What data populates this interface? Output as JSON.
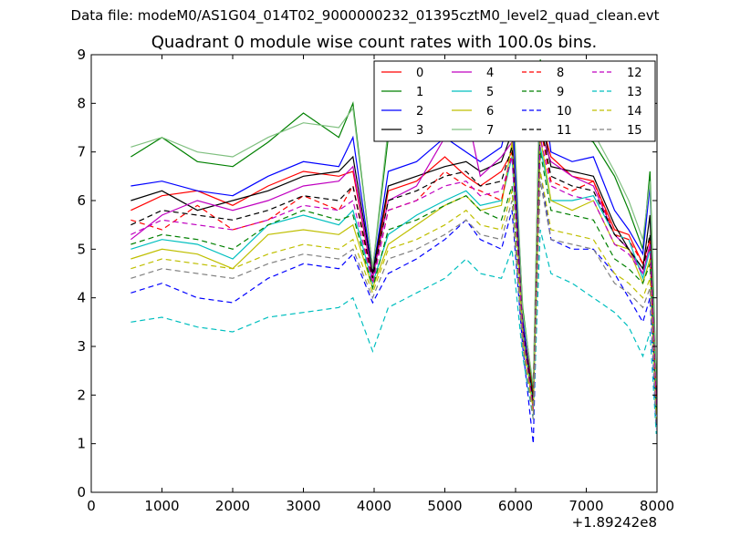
{
  "suptitle": "Data file: modeM0/AS1G04_014T02_9000000232_01395cztM0_level2_quad_clean.evt",
  "chart_data": {
    "type": "line",
    "title": "Quadrant 0 module wise count rates with 100.0s bins.",
    "xlabel": "",
    "ylabel": "",
    "x_offset_label": "+1.89242e8",
    "xlim": [
      0,
      8000
    ],
    "ylim": [
      0,
      9
    ],
    "xticks": [
      0,
      1000,
      2000,
      3000,
      4000,
      5000,
      6000,
      7000,
      8000
    ],
    "yticks": [
      0,
      1,
      2,
      3,
      4,
      5,
      6,
      7,
      8,
      9
    ],
    "legend_position": "top-right",
    "legend_columns": 4,
    "x": [
      560,
      1000,
      1500,
      2000,
      2500,
      3000,
      3500,
      3700,
      3980,
      4200,
      4600,
      5000,
      5300,
      5500,
      5800,
      5950,
      6100,
      6250,
      6350,
      6500,
      6800,
      7100,
      7400,
      7600,
      7800,
      7900,
      7990
    ],
    "series": [
      {
        "name": "0",
        "color": "#ff0000",
        "dash": "solid",
        "values": [
          5.8,
          6.1,
          6.2,
          5.9,
          6.3,
          6.6,
          6.5,
          6.6,
          4.4,
          6.2,
          6.4,
          6.9,
          6.5,
          6.3,
          6.6,
          7.0,
          3.5,
          2.0,
          7.7,
          6.9,
          6.5,
          6.4,
          5.4,
          5.3,
          4.7,
          5.2,
          2.1
        ]
      },
      {
        "name": "1",
        "color": "#008000",
        "dash": "solid",
        "values": [
          6.9,
          7.3,
          6.8,
          6.7,
          7.2,
          7.8,
          7.3,
          8.0,
          4.6,
          7.3,
          7.6,
          8.0,
          7.9,
          7.5,
          7.8,
          8.1,
          3.8,
          2.1,
          8.9,
          7.9,
          7.4,
          7.2,
          6.5,
          5.8,
          5.0,
          6.6,
          2.3
        ]
      },
      {
        "name": "2",
        "color": "#0000ff",
        "dash": "solid",
        "values": [
          6.3,
          6.4,
          6.2,
          6.1,
          6.5,
          6.8,
          6.7,
          7.3,
          4.5,
          6.6,
          6.8,
          7.3,
          7.0,
          6.8,
          7.1,
          8.0,
          3.6,
          1.8,
          8.7,
          7.0,
          6.8,
          6.9,
          5.8,
          5.4,
          4.9,
          6.3,
          2.0
        ]
      },
      {
        "name": "3",
        "color": "#000000",
        "dash": "solid",
        "values": [
          6.0,
          6.2,
          5.8,
          6.0,
          6.2,
          6.5,
          6.6,
          6.9,
          4.5,
          6.3,
          6.5,
          6.7,
          6.8,
          6.6,
          6.8,
          7.4,
          3.4,
          1.9,
          7.8,
          6.7,
          6.6,
          6.5,
          5.5,
          5.0,
          4.6,
          5.7,
          1.9
        ]
      },
      {
        "name": "4",
        "color": "#c000c0",
        "dash": "solid",
        "values": [
          5.2,
          5.7,
          6.0,
          5.8,
          6.0,
          6.3,
          6.4,
          6.7,
          4.4,
          6.0,
          6.3,
          7.3,
          7.9,
          6.5,
          6.9,
          7.2,
          3.4,
          1.7,
          7.4,
          6.8,
          6.5,
          6.3,
          5.3,
          5.0,
          4.5,
          5.1,
          1.8
        ]
      },
      {
        "name": "5",
        "color": "#00bfbf",
        "dash": "solid",
        "values": [
          5.0,
          5.2,
          5.1,
          4.8,
          5.5,
          5.7,
          5.5,
          5.8,
          4.3,
          5.3,
          5.7,
          6.0,
          6.2,
          5.9,
          6.0,
          6.9,
          3.3,
          1.8,
          7.1,
          6.0,
          6.0,
          6.1,
          5.3,
          5.2,
          4.4,
          5.0,
          1.7
        ]
      },
      {
        "name": "6",
        "color": "#bfbf00",
        "dash": "solid",
        "values": [
          4.8,
          5.0,
          4.9,
          4.6,
          5.3,
          5.4,
          5.3,
          5.5,
          4.2,
          5.1,
          5.5,
          5.9,
          6.1,
          5.8,
          5.9,
          7.2,
          3.2,
          1.7,
          7.3,
          6.0,
          5.8,
          6.0,
          5.1,
          5.0,
          4.3,
          4.8,
          1.6
        ]
      },
      {
        "name": "7",
        "color": "#80c080",
        "dash": "solid",
        "values": [
          7.1,
          7.3,
          7.0,
          6.9,
          7.3,
          7.6,
          7.5,
          7.9,
          4.6,
          7.5,
          7.7,
          8.0,
          7.8,
          7.4,
          7.7,
          8.6,
          3.7,
          2.2,
          8.8,
          8.0,
          7.6,
          7.4,
          6.6,
          6.0,
          5.2,
          6.4,
          2.2
        ]
      },
      {
        "name": "8",
        "color": "#ff0000",
        "dash": "dashed",
        "values": [
          5.6,
          5.4,
          5.9,
          5.4,
          5.6,
          6.1,
          5.8,
          6.3,
          4.3,
          5.8,
          6.0,
          6.6,
          6.3,
          6.2,
          6.0,
          7.0,
          3.4,
          1.8,
          7.5,
          6.4,
          6.2,
          6.4,
          5.3,
          5.2,
          4.7,
          5.0,
          1.9
        ]
      },
      {
        "name": "9",
        "color": "#008000",
        "dash": "dashed",
        "values": [
          5.1,
          5.3,
          5.2,
          5.0,
          5.5,
          5.8,
          5.6,
          5.7,
          4.2,
          5.4,
          5.6,
          5.9,
          6.1,
          5.8,
          5.6,
          6.3,
          3.2,
          1.7,
          7.0,
          5.8,
          5.7,
          5.6,
          4.8,
          4.6,
          4.3,
          4.7,
          1.7
        ]
      },
      {
        "name": "10",
        "color": "#0000ff",
        "dash": "dashed",
        "values": [
          4.1,
          4.3,
          4.0,
          3.9,
          4.4,
          4.7,
          4.6,
          4.9,
          3.9,
          4.5,
          4.8,
          5.2,
          5.6,
          5.2,
          5.0,
          5.8,
          3.0,
          1.0,
          6.6,
          5.2,
          5.0,
          5.0,
          4.5,
          4.0,
          3.5,
          4.0,
          1.3
        ]
      },
      {
        "name": "11",
        "color": "#000000",
        "dash": "dashed",
        "values": [
          5.5,
          5.8,
          5.7,
          5.6,
          5.8,
          6.1,
          6.0,
          6.3,
          4.4,
          6.0,
          6.2,
          6.5,
          6.6,
          6.3,
          6.4,
          7.1,
          3.4,
          1.8,
          7.6,
          6.5,
          6.3,
          6.2,
          5.3,
          5.0,
          4.6,
          5.3,
          1.8
        ]
      },
      {
        "name": "12",
        "color": "#c000c0",
        "dash": "dashed",
        "values": [
          5.3,
          5.6,
          5.5,
          5.4,
          5.6,
          5.9,
          5.8,
          6.0,
          4.3,
          5.8,
          6.0,
          6.3,
          6.4,
          6.1,
          6.2,
          6.9,
          3.3,
          1.7,
          7.3,
          6.3,
          6.1,
          6.0,
          5.1,
          4.9,
          4.5,
          5.1,
          1.8
        ]
      },
      {
        "name": "13",
        "color": "#00bfbf",
        "dash": "dashed",
        "values": [
          3.5,
          3.6,
          3.4,
          3.3,
          3.6,
          3.7,
          3.8,
          4.0,
          2.9,
          3.8,
          4.1,
          4.4,
          4.8,
          4.5,
          4.4,
          5.0,
          2.8,
          1.5,
          5.4,
          4.5,
          4.3,
          4.0,
          3.7,
          3.4,
          2.8,
          3.3,
          1.2
        ]
      },
      {
        "name": "14",
        "color": "#bfbf00",
        "dash": "dashed",
        "values": [
          4.6,
          4.8,
          4.7,
          4.6,
          4.9,
          5.1,
          5.0,
          5.2,
          4.1,
          5.0,
          5.2,
          5.5,
          5.8,
          5.5,
          5.4,
          6.2,
          3.1,
          1.6,
          6.6,
          5.4,
          5.3,
          5.2,
          4.5,
          4.3,
          4.0,
          4.4,
          1.5
        ]
      },
      {
        "name": "15",
        "color": "#808080",
        "dash": "dashed",
        "values": [
          4.4,
          4.6,
          4.5,
          4.4,
          4.7,
          4.9,
          4.8,
          5.0,
          4.0,
          4.8,
          5.0,
          5.3,
          5.6,
          5.3,
          5.2,
          6.0,
          3.0,
          1.5,
          6.4,
          5.2,
          5.1,
          5.0,
          4.3,
          4.1,
          3.8,
          4.2,
          1.4
        ]
      }
    ]
  }
}
